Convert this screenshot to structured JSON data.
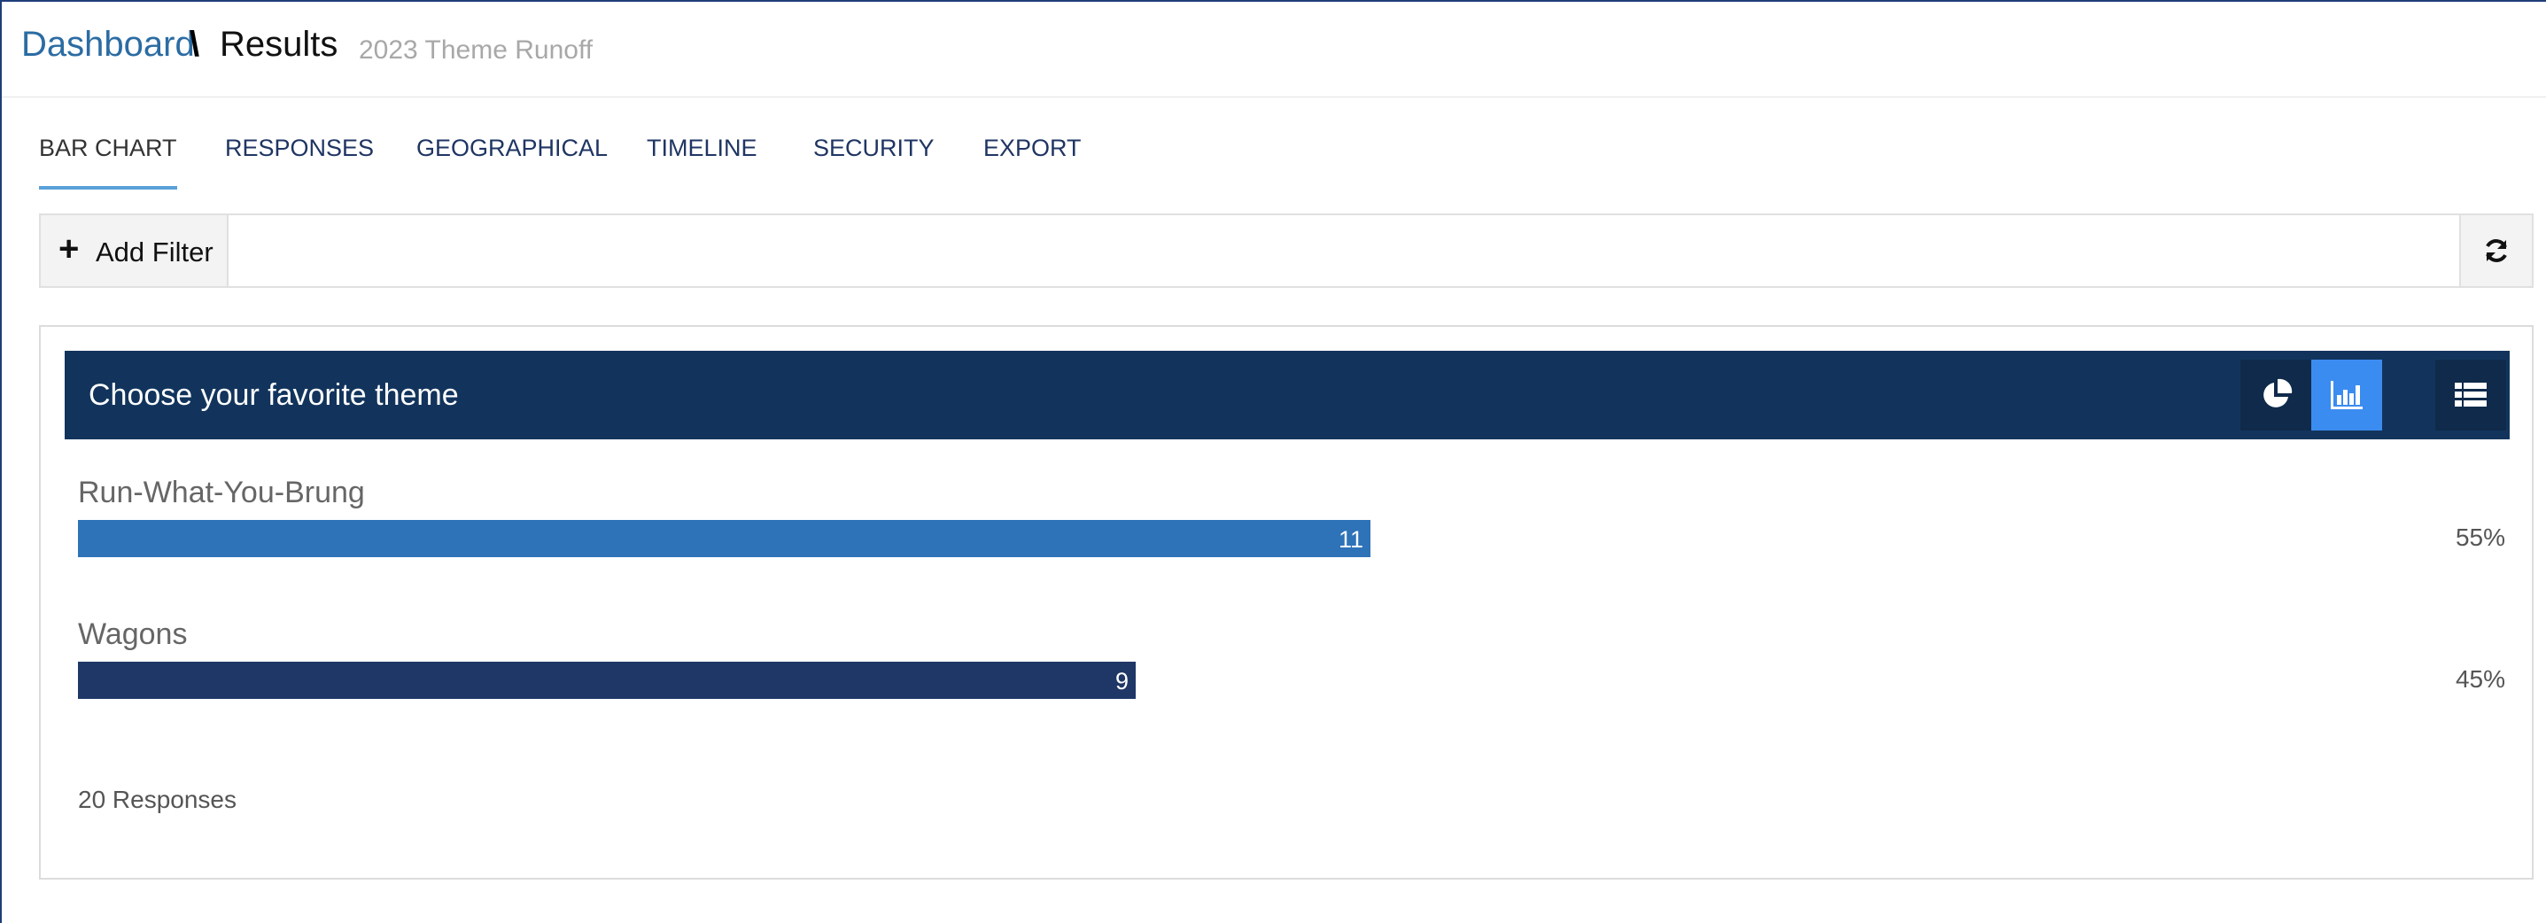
{
  "breadcrumb": {
    "dashboard": "Dashboard",
    "separator": "\\",
    "results": "Results",
    "survey_name": "2023 Theme Runoff"
  },
  "tabs": [
    {
      "label": "BAR CHART",
      "active": true
    },
    {
      "label": "RESPONSES",
      "active": false
    },
    {
      "label": "GEOGRAPHICAL",
      "active": false
    },
    {
      "label": "TIMELINE",
      "active": false
    },
    {
      "label": "SECURITY",
      "active": false
    },
    {
      "label": "EXPORT",
      "active": false
    }
  ],
  "filter_bar": {
    "add_filter_label": "Add Filter",
    "plus_icon": "plus-icon",
    "refresh_icon": "refresh-icon"
  },
  "question": {
    "title": "Choose your favorite theme",
    "view_buttons": [
      {
        "icon": "pie-chart-icon",
        "active": false
      },
      {
        "icon": "bar-chart-icon",
        "active": true
      },
      {
        "icon": "list-icon",
        "active": false
      }
    ],
    "footer": "20 Responses"
  },
  "colors": {
    "header_bg": "#12345c",
    "active_view": "#3b8cf0",
    "link": "#2b6ca3"
  },
  "chart_data": {
    "type": "bar",
    "orientation": "horizontal",
    "categories": [
      "Run-What-You-Brung",
      "Wagons"
    ],
    "values": [
      11,
      9
    ],
    "percent_labels": [
      "55%",
      "45%"
    ],
    "percents": [
      55,
      45
    ],
    "colors": [
      "#2e72b8",
      "#1e3766"
    ],
    "total": 20
  }
}
